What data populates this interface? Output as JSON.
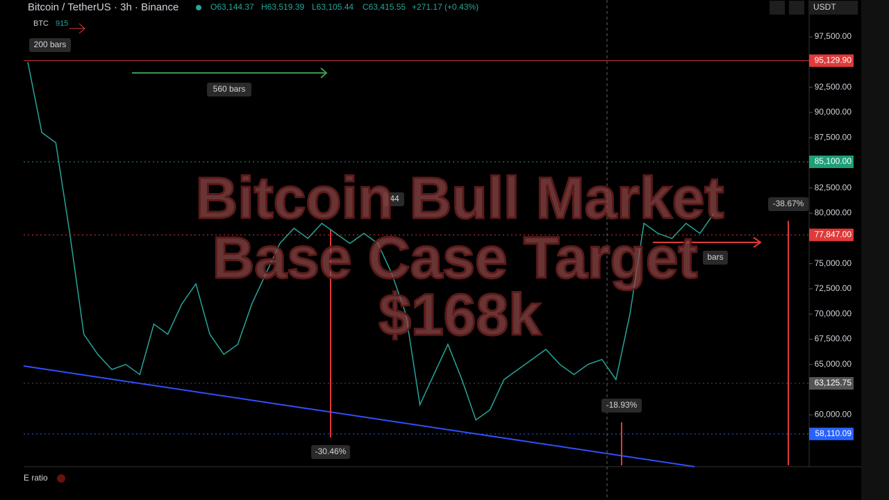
{
  "header": {
    "symbol": "Bitcoin / TetherUS · 3h · Binance",
    "open": "O63,144.37",
    "high": "H63,519.39",
    "low": "L63,105.44",
    "close": "C63,415.55",
    "change": "+271.17 (+0.43%)",
    "currency": "USDT",
    "indicator": "BTC",
    "indicator_value": "915"
  },
  "annotations": {
    "bars_200": "200 bars",
    "bars_560": "560 bars",
    "partial_44": "44",
    "partial_bars": "bars",
    "pct_1": "-30.46%",
    "pct_2": "-18.93%",
    "pct_3": "-38.67%",
    "footer": "E ratio"
  },
  "overlay": {
    "line1": "Bitcoin Bull Market",
    "line2": "Base Case Target",
    "line3": "$168k"
  },
  "chart_data": {
    "type": "line",
    "categories": [
      null,
      null,
      null,
      null,
      null,
      null,
      null,
      null,
      null,
      null,
      null,
      null,
      null,
      null,
      null,
      null,
      null,
      null,
      null,
      null,
      null,
      null,
      null,
      null,
      null,
      null,
      null,
      null,
      null,
      null,
      null,
      null,
      null,
      null,
      null,
      null,
      null,
      null,
      null,
      null,
      null,
      null,
      null,
      null,
      null,
      null,
      null,
      null,
      null,
      null
    ],
    "values": [
      95000,
      88000,
      87000,
      78000,
      68000,
      66000,
      64500,
      65000,
      64000,
      69000,
      68000,
      71000,
      73000,
      68000,
      66000,
      67000,
      71000,
      74000,
      77000,
      78500,
      77500,
      79000,
      78000,
      77000,
      78000,
      77000,
      74000,
      70000,
      61000,
      64000,
      67000,
      63500,
      59500,
      60500,
      63500,
      64500,
      65500,
      66500,
      65000,
      64000,
      65000,
      65500,
      63500,
      70000,
      79000,
      78000,
      77500,
      79000,
      78000,
      80000
    ],
    "color": "#26a69a",
    "ylim": [
      55000,
      101150
    ],
    "yticks": [
      {
        "value": 97500,
        "label": "97,500.00"
      },
      {
        "value": 92500,
        "label": "92,500.00"
      },
      {
        "value": 90000,
        "label": "90,000.00"
      },
      {
        "value": 87500,
        "label": "87,500.00"
      },
      {
        "value": 82500,
        "label": "82,500.00"
      },
      {
        "value": 80000,
        "label": "80,000.00"
      },
      {
        "value": 75000,
        "label": "75,000.00"
      },
      {
        "value": 72500,
        "label": "72,500.00"
      },
      {
        "value": 70000,
        "label": "70,000.00"
      },
      {
        "value": 67500,
        "label": "67,500.00"
      },
      {
        "value": 65000,
        "label": "65,000.00"
      },
      {
        "value": 60000,
        "label": "60,000.00"
      }
    ],
    "price_levels": [
      {
        "value": 95129.9,
        "label": "95,129.90",
        "color": "#e03a3a"
      },
      {
        "value": 85100,
        "label": "85,100.00",
        "color": "#1f9e78"
      },
      {
        "value": 77847,
        "label": "77,847.00",
        "color": "#e03a3a"
      },
      {
        "value": 63125.75,
        "label": "63,125.75",
        "color": "#555555"
      },
      {
        "value": 58110.09,
        "label": "58,110.09",
        "color": "#2962ff"
      }
    ]
  }
}
